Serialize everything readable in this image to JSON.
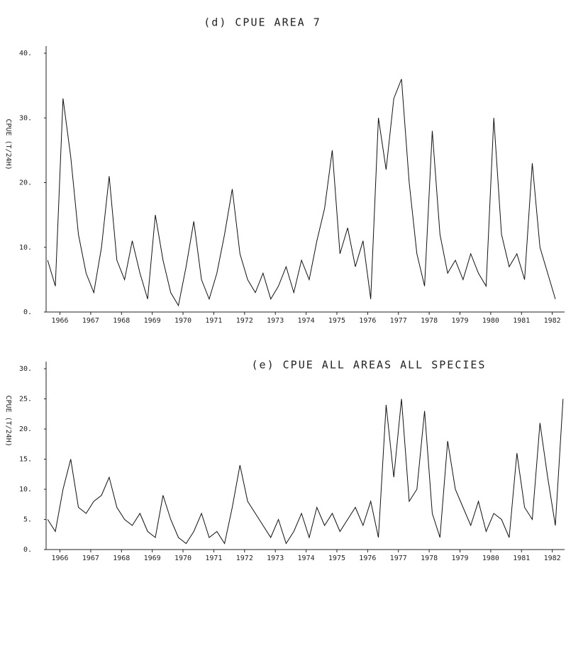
{
  "chart_data": [
    {
      "type": "line",
      "title": "(d) CPUE AREA 7",
      "y_label": "CPUE (T/24H)",
      "x": [
        1965.6,
        1965.85,
        1966.1,
        1966.35,
        1966.6,
        1966.85,
        1967.1,
        1967.35,
        1967.6,
        1967.85,
        1968.1,
        1968.35,
        1968.6,
        1968.85,
        1969.1,
        1969.35,
        1969.6,
        1969.85,
        1970.1,
        1970.35,
        1970.6,
        1970.85,
        1971.1,
        1971.35,
        1971.6,
        1971.85,
        1972.1,
        1972.35,
        1972.6,
        1972.85,
        1973.1,
        1973.35,
        1973.6,
        1973.85,
        1974.1,
        1974.35,
        1974.6,
        1974.85,
        1975.1,
        1975.35,
        1975.6,
        1975.85,
        1976.1,
        1976.35,
        1976.6,
        1976.85,
        1977.1,
        1977.35,
        1977.6,
        1977.85,
        1978.1,
        1978.35,
        1978.6,
        1978.85,
        1979.1,
        1979.35,
        1979.6,
        1979.85,
        1980.1,
        1980.35,
        1980.6,
        1980.85,
        1981.1,
        1981.35,
        1981.6,
        1981.85,
        1982.1,
        1982.35
      ],
      "values": [
        8,
        4,
        33,
        24,
        12,
        6,
        3,
        10,
        21,
        8,
        5,
        11,
        6,
        2,
        15,
        8,
        3,
        1,
        7,
        14,
        5,
        2,
        6,
        12,
        19,
        9,
        5,
        3,
        6,
        2,
        4,
        7,
        3,
        8,
        5,
        11,
        16,
        25,
        9,
        13,
        7,
        11,
        2,
        30,
        22,
        33,
        36,
        20,
        9,
        4,
        28,
        12,
        6,
        8,
        5,
        9,
        6,
        4,
        30,
        12,
        7,
        9,
        5,
        23,
        10,
        6,
        2,
        null
      ],
      "color": "#111111",
      "xlim": [
        1965.55,
        1982.4
      ],
      "xticks": [
        1966,
        1967,
        1968,
        1969,
        1970,
        1971,
        1972,
        1973,
        1974,
        1975,
        1976,
        1977,
        1978,
        1979,
        1980,
        1981,
        1982
      ],
      "ylim": [
        0,
        40
      ],
      "yticks": [
        {
          "value": 0,
          "label": "0."
        },
        {
          "value": 10,
          "label": "10."
        },
        {
          "value": 20,
          "label": "20."
        },
        {
          "value": 30,
          "label": "30."
        },
        {
          "value": 40,
          "label": "40."
        }
      ]
    },
    {
      "type": "line",
      "title": "(e) CPUE ALL AREAS ALL SPECIES",
      "y_label": "CPUE (T/24H)",
      "x": [
        1965.6,
        1965.85,
        1966.1,
        1966.35,
        1966.6,
        1966.85,
        1967.1,
        1967.35,
        1967.6,
        1967.85,
        1968.1,
        1968.35,
        1968.6,
        1968.85,
        1969.1,
        1969.35,
        1969.6,
        1969.85,
        1970.1,
        1970.35,
        1970.6,
        1970.85,
        1971.1,
        1971.35,
        1971.6,
        1971.85,
        1972.1,
        1972.35,
        1972.6,
        1972.85,
        1973.1,
        1973.35,
        1973.6,
        1973.85,
        1974.1,
        1974.35,
        1974.6,
        1974.85,
        1975.1,
        1975.35,
        1975.6,
        1975.85,
        1976.1,
        1976.35,
        1976.6,
        1976.85,
        1977.1,
        1977.35,
        1977.6,
        1977.85,
        1978.1,
        1978.35,
        1978.6,
        1978.85,
        1979.1,
        1979.35,
        1979.6,
        1979.85,
        1980.1,
        1980.35,
        1980.6,
        1980.85,
        1981.1,
        1981.35,
        1981.6,
        1981.85,
        1982.1,
        1982.35
      ],
      "values": [
        5,
        3,
        10,
        15,
        7,
        6,
        8,
        9,
        12,
        7,
        5,
        4,
        6,
        3,
        2,
        9,
        5,
        2,
        1,
        3,
        6,
        2,
        3,
        1,
        7,
        14,
        8,
        6,
        4,
        2,
        5,
        1,
        3,
        6,
        2,
        7,
        4,
        6,
        3,
        5,
        7,
        4,
        8,
        2,
        24,
        12,
        25,
        8,
        10,
        23,
        6,
        2,
        18,
        10,
        7,
        4,
        8,
        3,
        6,
        5,
        2,
        16,
        7,
        5,
        21,
        12,
        4,
        25
      ],
      "color": "#111111",
      "xlim": [
        1965.55,
        1982.4
      ],
      "xticks": [
        1966,
        1967,
        1968,
        1969,
        1970,
        1971,
        1972,
        1973,
        1974,
        1975,
        1976,
        1977,
        1978,
        1979,
        1980,
        1981,
        1982
      ],
      "ylim": [
        0,
        30
      ],
      "yticks": [
        {
          "value": 0,
          "label": "0."
        },
        {
          "value": 5,
          "label": "5."
        },
        {
          "value": 10,
          "label": "10."
        },
        {
          "value": 15,
          "label": "15."
        },
        {
          "value": 20,
          "label": "20."
        },
        {
          "value": 25,
          "label": "25."
        },
        {
          "value": 30,
          "label": "30."
        }
      ]
    }
  ]
}
